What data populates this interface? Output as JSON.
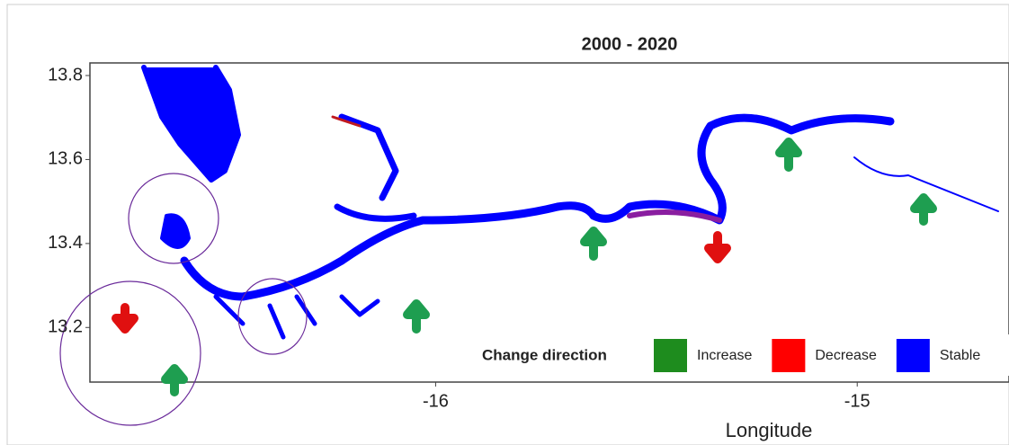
{
  "chart_data": {
    "type": "map",
    "title": "2000 - 2020",
    "x_label": "Longitude",
    "xlim": [
      -16.82,
      -14.64
    ],
    "ylim": [
      13.07,
      13.83
    ],
    "xticks": [
      -16,
      -15
    ],
    "yticks": [
      13.8,
      13.6,
      13.4,
      13.2
    ],
    "legend": {
      "title": "Change direction",
      "position": "bottom-right",
      "entries": [
        {
          "name": "Increase",
          "color": "#1e8c1e"
        },
        {
          "name": "Decrease",
          "color": "#ff0000"
        },
        {
          "name": "Stable",
          "color": "#0000ff"
        }
      ]
    }
  }
}
